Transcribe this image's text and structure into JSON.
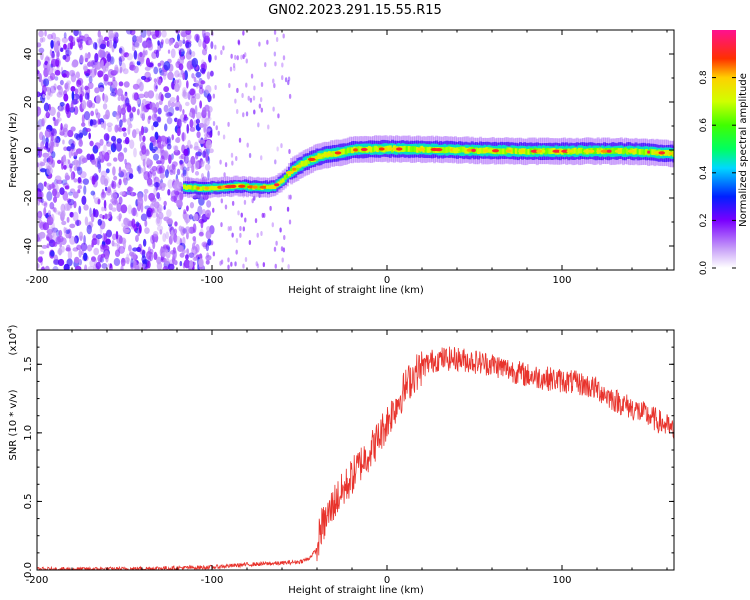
{
  "figure_title": "GN02.2023.291.15.55.R15",
  "chart_data": [
    {
      "type": "heatmap",
      "title": "",
      "xlabel": "Height of straight line (km)",
      "ylabel": "Frequency (Hz)",
      "xlim": [
        -200,
        164
      ],
      "ylim": [
        -50,
        50
      ],
      "xticks": [
        "-200",
        "-100",
        "0",
        "100"
      ],
      "yticks": [
        "-40",
        "-20",
        "0",
        "20",
        "40"
      ],
      "colorbar": {
        "label": "Normalized spectral amplitude",
        "range": [
          0,
          1
        ],
        "ticks": [
          "0.0",
          "0.2",
          "0.4",
          "0.6",
          "0.8"
        ],
        "colormap": "white-purple-blue-cyan-green-yellow-red-pink"
      },
      "ridge_frequency": {
        "x": [
          -116,
          -105,
          -95,
          -85,
          -75,
          -65,
          -60,
          -55,
          -50,
          -45,
          -40,
          -35,
          -30,
          -25,
          -20,
          -10,
          0,
          20,
          40,
          60,
          80,
          100,
          120,
          140,
          164
        ],
        "y": [
          -15.5,
          -16,
          -15.5,
          -15,
          -15.5,
          -15.5,
          -13,
          -9,
          -6.5,
          -4.5,
          -3,
          -2,
          -1.5,
          -0.8,
          0,
          0.3,
          0.5,
          0.3,
          0,
          -0.3,
          -0.5,
          -0.5,
          -0.5,
          -0.5,
          -1.5
        ]
      },
      "noise_region_x": [
        -200,
        -100
      ],
      "color_noise": "#7a2cff",
      "grid": false
    },
    {
      "type": "line",
      "title": "",
      "xlabel": "Height of straight line (km)",
      "ylabel": "SNR (10 * v/v)",
      "y_multiplier_label": "(x10",
      "y_multiplier_exponent": "4",
      "xlim": [
        -200,
        164
      ],
      "ylim": [
        0,
        17500
      ],
      "xticks": [
        "-200",
        "-100",
        "0",
        "100"
      ],
      "yticks": [
        "0.0",
        "0.5",
        "1.0",
        "1.5"
      ],
      "series": [
        {
          "color": "#e8332c",
          "x": [
            -200,
            -150,
            -100,
            -80,
            -60,
            -50,
            -45,
            -40,
            -38,
            -35,
            -30,
            -25,
            -20,
            -15,
            -10,
            -5,
            0,
            5,
            10,
            15,
            20,
            25,
            30,
            40,
            50,
            60,
            70,
            80,
            90,
            100,
            110,
            120,
            130,
            140,
            150,
            160,
            164
          ],
          "y": [
            50,
            80,
            200,
            400,
            500,
            600,
            800,
            1500,
            3000,
            3600,
            5000,
            5800,
            6800,
            7800,
            8600,
            9600,
            10800,
            12000,
            13200,
            14200,
            14800,
            15200,
            15400,
            15400,
            15200,
            15000,
            14600,
            14200,
            14000,
            13800,
            13600,
            13200,
            12400,
            11800,
            11200,
            10500,
            10000
          ]
        }
      ],
      "grid": false
    }
  ]
}
